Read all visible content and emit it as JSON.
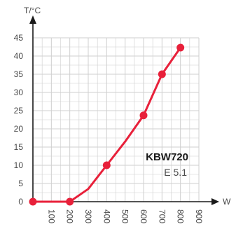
{
  "chart_data": {
    "type": "line",
    "ylabel": "T/°C",
    "xlabel": "W",
    "x_ticks": [
      100,
      200,
      300,
      400,
      500,
      600,
      700,
      800,
      900
    ],
    "y_ticks": [
      0,
      5,
      10,
      15,
      20,
      25,
      30,
      35,
      40,
      45
    ],
    "xlim": [
      0,
      900
    ],
    "ylim": [
      0,
      45
    ],
    "grid": true,
    "series": [
      {
        "color": "#e8203a",
        "points": [
          {
            "x": 0,
            "y": 0,
            "marker": true
          },
          {
            "x": 200,
            "y": 0,
            "marker": true
          },
          {
            "x": 300,
            "y": 3.5,
            "marker": false
          },
          {
            "x": 400,
            "y": 10,
            "marker": true
          },
          {
            "x": 500,
            "y": 16.5,
            "marker": false
          },
          {
            "x": 600,
            "y": 23.7,
            "marker": true
          },
          {
            "x": 700,
            "y": 35,
            "marker": true
          },
          {
            "x": 800,
            "y": 42.3,
            "marker": true
          }
        ]
      }
    ],
    "annotations": [
      {
        "text": "KBW720",
        "role": "model"
      },
      {
        "text": "E 5.1",
        "role": "sub"
      }
    ]
  },
  "colors": {
    "grid": "#cfcfcf",
    "axis": "#1a1a1a",
    "line": "#e8203a"
  }
}
